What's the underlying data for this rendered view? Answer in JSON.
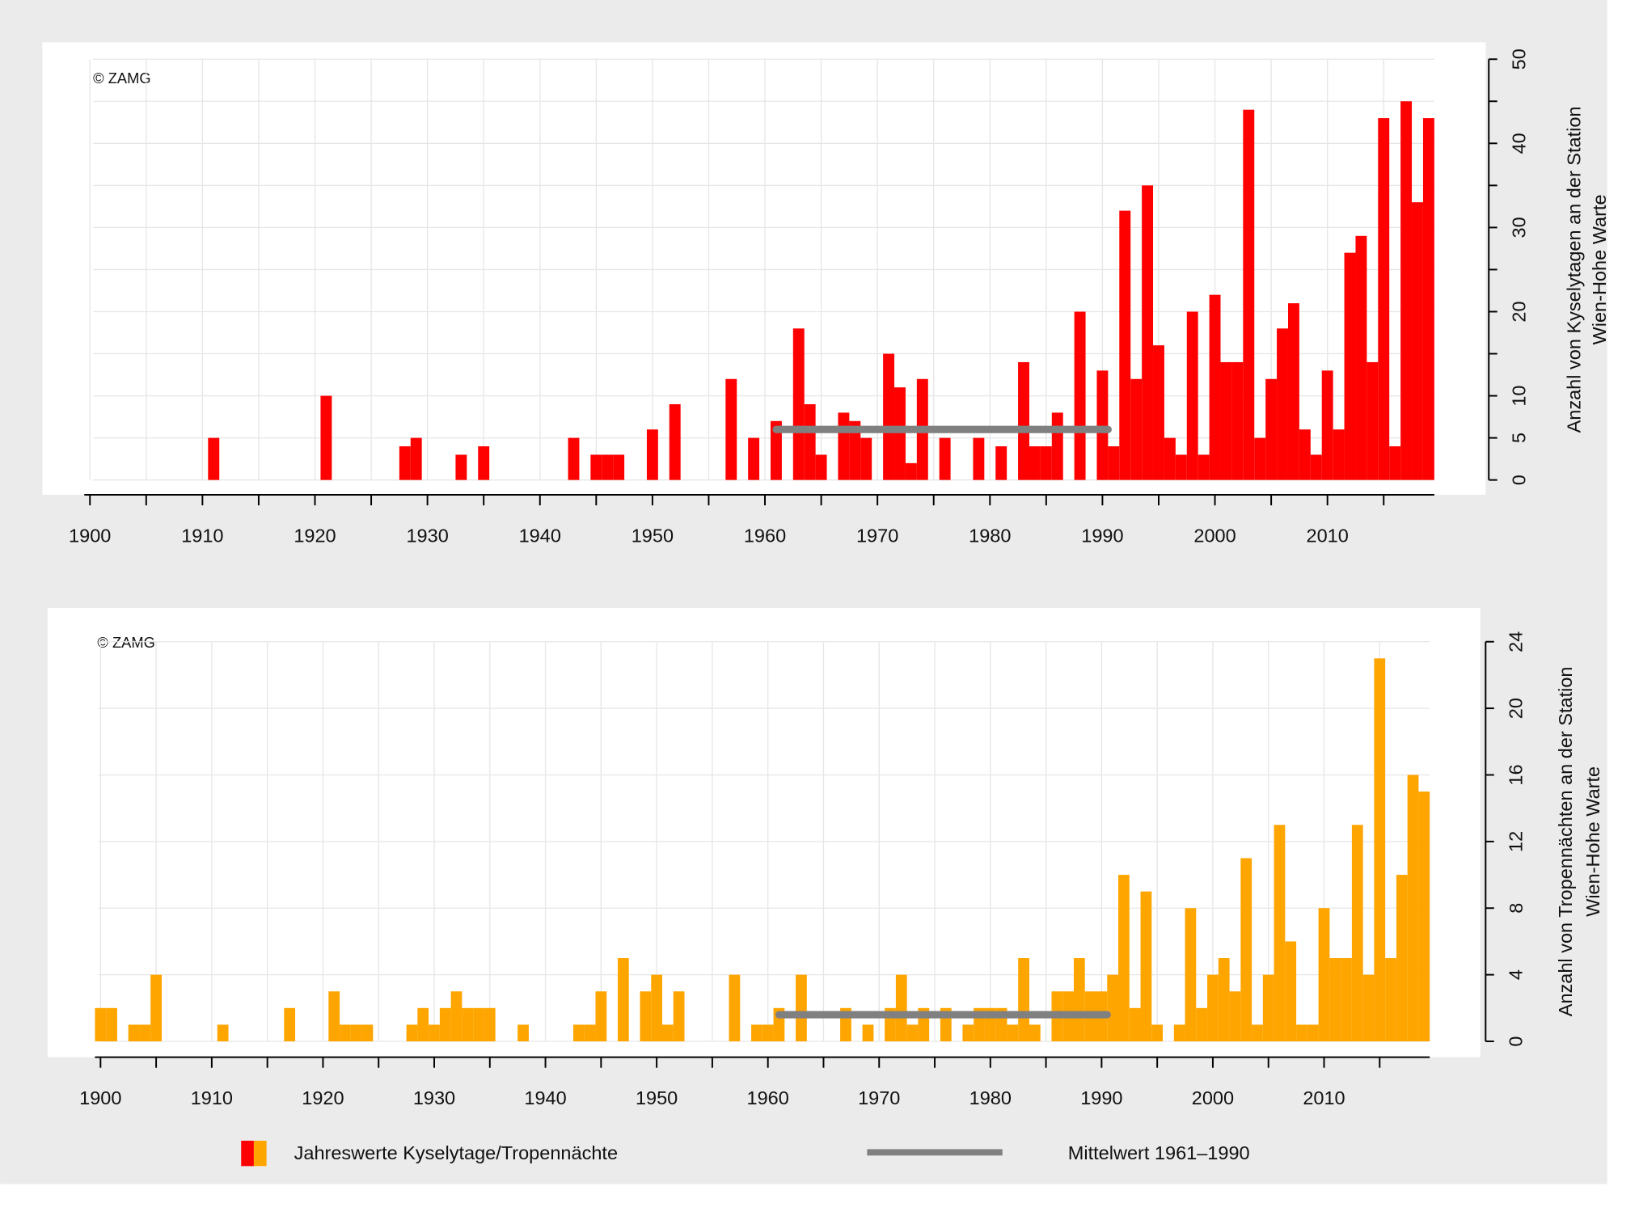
{
  "chart_data": [
    {
      "type": "bar",
      "credit": "© ZAMG",
      "ylabel": [
        "Anzahl von Kyselytagen an der Station",
        "Wien-Hohe Warte"
      ],
      "color": "#ff0000",
      "grid": true,
      "x": [
        1900,
        1901,
        1902,
        1903,
        1904,
        1905,
        1906,
        1907,
        1908,
        1909,
        1910,
        1911,
        1912,
        1913,
        1914,
        1915,
        1916,
        1917,
        1918,
        1919,
        1920,
        1921,
        1922,
        1923,
        1924,
        1925,
        1926,
        1927,
        1928,
        1929,
        1930,
        1931,
        1932,
        1933,
        1934,
        1935,
        1936,
        1937,
        1938,
        1939,
        1940,
        1941,
        1942,
        1943,
        1944,
        1945,
        1946,
        1947,
        1948,
        1949,
        1950,
        1951,
        1952,
        1953,
        1954,
        1955,
        1956,
        1957,
        1958,
        1959,
        1960,
        1961,
        1962,
        1963,
        1964,
        1965,
        1966,
        1967,
        1968,
        1969,
        1970,
        1971,
        1972,
        1973,
        1974,
        1975,
        1976,
        1977,
        1978,
        1979,
        1980,
        1981,
        1982,
        1983,
        1984,
        1985,
        1986,
        1987,
        1988,
        1989,
        1990,
        1991,
        1992,
        1993,
        1994,
        1995,
        1996,
        1997,
        1998,
        1999,
        2000,
        2001,
        2002,
        2003,
        2004,
        2005,
        2006,
        2007,
        2008,
        2009,
        2010,
        2011,
        2012,
        2013,
        2014,
        2015,
        2016,
        2017,
        2018,
        2019
      ],
      "values": [
        0,
        0,
        0,
        0,
        0,
        0,
        0,
        0,
        0,
        0,
        0,
        5,
        0,
        0,
        0,
        0,
        0,
        0,
        0,
        0,
        0,
        10,
        0,
        0,
        0,
        0,
        0,
        0,
        4,
        5,
        0,
        0,
        0,
        3,
        0,
        4,
        0,
        0,
        0,
        0,
        0,
        0,
        0,
        5,
        0,
        3,
        3,
        3,
        0,
        0,
        6,
        0,
        9,
        0,
        0,
        0,
        0,
        12,
        0,
        5,
        0,
        7,
        0,
        18,
        9,
        3,
        0,
        8,
        7,
        5,
        0,
        15,
        11,
        2,
        12,
        0,
        5,
        0,
        0,
        5,
        0,
        4,
        0,
        14,
        4,
        4,
        8,
        0,
        20,
        0,
        13,
        4,
        32,
        12,
        35,
        16,
        5,
        3,
        20,
        3,
        22,
        14,
        14,
        44,
        5,
        12,
        18,
        21,
        6,
        3,
        13,
        6,
        27,
        29,
        14,
        43,
        4,
        45,
        33,
        43
      ],
      "mean": {
        "value": 6,
        "x": [
          1961,
          1990
        ],
        "color": "#808080"
      },
      "xlim": [
        1899.5,
        2019.5
      ],
      "xticks": [
        1900,
        1910,
        1920,
        1930,
        1940,
        1950,
        1960,
        1970,
        1980,
        1990,
        2000,
        2010
      ],
      "xminorticks": [
        1905,
        1915,
        1925,
        1935,
        1945,
        1955,
        1965,
        1975,
        1985,
        1995,
        2005,
        2015
      ],
      "ylim": [
        0,
        50
      ],
      "yticks": [
        0,
        5,
        10,
        20,
        30,
        40,
        50
      ],
      "yminorticks": [
        15,
        25,
        35,
        45
      ]
    },
    {
      "type": "bar",
      "credit": "© ZAMG",
      "ylabel": [
        "Anzahl von Tropennächten an der Station",
        "Wien-Hohe Warte"
      ],
      "color": "#ffa500",
      "grid": true,
      "x": [
        1900,
        1901,
        1902,
        1903,
        1904,
        1905,
        1906,
        1907,
        1908,
        1909,
        1910,
        1911,
        1912,
        1913,
        1914,
        1915,
        1916,
        1917,
        1918,
        1919,
        1920,
        1921,
        1922,
        1923,
        1924,
        1925,
        1926,
        1927,
        1928,
        1929,
        1930,
        1931,
        1932,
        1933,
        1934,
        1935,
        1936,
        1937,
        1938,
        1939,
        1940,
        1941,
        1942,
        1943,
        1944,
        1945,
        1946,
        1947,
        1948,
        1949,
        1950,
        1951,
        1952,
        1953,
        1954,
        1955,
        1956,
        1957,
        1958,
        1959,
        1960,
        1961,
        1962,
        1963,
        1964,
        1965,
        1966,
        1967,
        1968,
        1969,
        1970,
        1971,
        1972,
        1973,
        1974,
        1975,
        1976,
        1977,
        1978,
        1979,
        1980,
        1981,
        1982,
        1983,
        1984,
        1985,
        1986,
        1987,
        1988,
        1989,
        1990,
        1991,
        1992,
        1993,
        1994,
        1995,
        1996,
        1997,
        1998,
        1999,
        2000,
        2001,
        2002,
        2003,
        2004,
        2005,
        2006,
        2007,
        2008,
        2009,
        2010,
        2011,
        2012,
        2013,
        2014,
        2015,
        2016,
        2017,
        2018,
        2019
      ],
      "values": [
        2,
        2,
        0,
        1,
        1,
        4,
        0,
        0,
        0,
        0,
        0,
        1,
        0,
        0,
        0,
        0,
        0,
        2,
        0,
        0,
        0,
        3,
        1,
        1,
        1,
        0,
        0,
        0,
        1,
        2,
        1,
        2,
        3,
        2,
        2,
        2,
        0,
        0,
        1,
        0,
        0,
        0,
        0,
        1,
        1,
        3,
        0,
        5,
        0,
        3,
        4,
        1,
        3,
        0,
        0,
        0,
        0,
        4,
        0,
        1,
        1,
        2,
        0,
        4,
        0,
        0,
        0,
        2,
        0,
        1,
        0,
        2,
        4,
        1,
        2,
        0,
        2,
        0,
        1,
        2,
        2,
        2,
        1,
        5,
        1,
        0,
        3,
        3,
        5,
        3,
        3,
        4,
        10,
        2,
        9,
        1,
        0,
        1,
        8,
        2,
        4,
        5,
        3,
        11,
        1,
        4,
        13,
        6,
        1,
        1,
        8,
        5,
        5,
        13,
        4,
        23,
        5,
        10,
        16,
        15
      ],
      "mean": {
        "value": 1.6,
        "x": [
          1961,
          1990
        ],
        "color": "#808080"
      },
      "xlim": [
        1899.5,
        2019.5
      ],
      "xticks": [
        1900,
        1910,
        1920,
        1930,
        1940,
        1950,
        1960,
        1970,
        1980,
        1990,
        2000,
        2010
      ],
      "xminorticks": [
        1905,
        1915,
        1925,
        1935,
        1945,
        1955,
        1965,
        1975,
        1985,
        1995,
        2005,
        2015
      ],
      "ylim": [
        0,
        24
      ],
      "yticks": [
        0,
        4,
        8,
        12,
        16,
        20,
        24
      ]
    }
  ],
  "legend": {
    "bars": "Jahreswerte Kyselytage/Tropennächte",
    "mean": "Mittelwert 1961–1990"
  }
}
